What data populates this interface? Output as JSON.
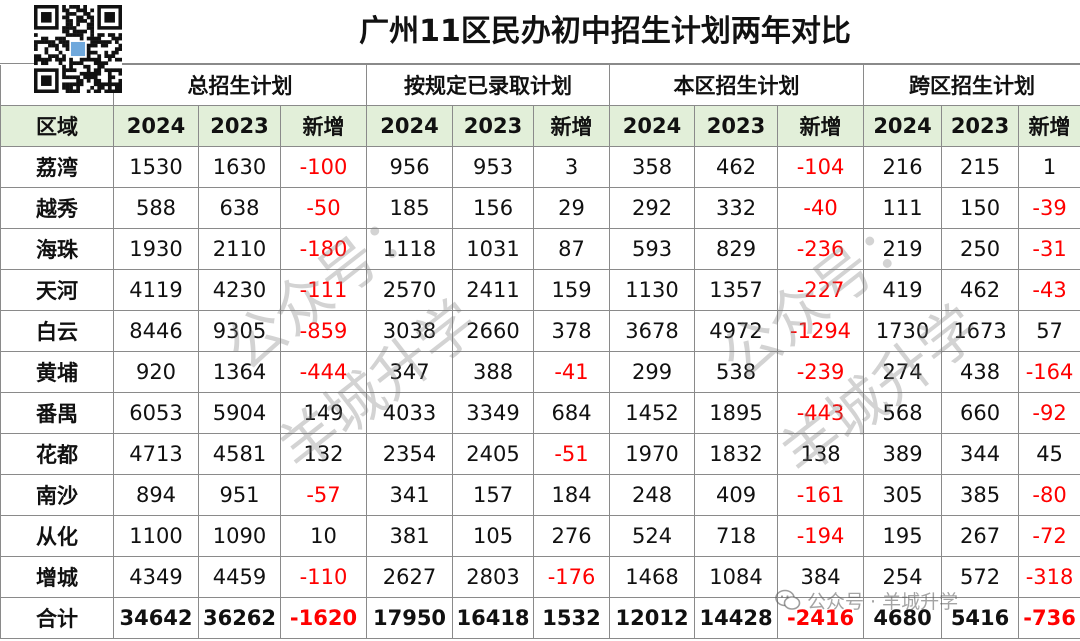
{
  "title": "广州11区民办初中招生计划两年对比",
  "groups": [
    "总招生计划",
    "按规定已录取计划",
    "本区招生计划",
    "跨区招生计划"
  ],
  "header": {
    "region": "区域",
    "cols": [
      "2024",
      "2023",
      "新增",
      "2024",
      "2023",
      "新增",
      "2024",
      "2023",
      "新增",
      "2024",
      "2023",
      "新增"
    ]
  },
  "rows": [
    {
      "region": "荔湾",
      "v": [
        "1530",
        "1630",
        "-100",
        "956",
        "953",
        "3",
        "358",
        "462",
        "-104",
        "216",
        "215",
        "1"
      ]
    },
    {
      "region": "越秀",
      "v": [
        "588",
        "638",
        "-50",
        "185",
        "156",
        "29",
        "292",
        "332",
        "-40",
        "111",
        "150",
        "-39"
      ]
    },
    {
      "region": "海珠",
      "v": [
        "1930",
        "2110",
        "-180",
        "1118",
        "1031",
        "87",
        "593",
        "829",
        "-236",
        "219",
        "250",
        "-31"
      ]
    },
    {
      "region": "天河",
      "v": [
        "4119",
        "4230",
        "-111",
        "2570",
        "2411",
        "159",
        "1130",
        "1357",
        "-227",
        "419",
        "462",
        "-43"
      ]
    },
    {
      "region": "白云",
      "v": [
        "8446",
        "9305",
        "-859",
        "3038",
        "2660",
        "378",
        "3678",
        "4972",
        "-1294",
        "1730",
        "1673",
        "57"
      ]
    },
    {
      "region": "黄埔",
      "v": [
        "920",
        "1364",
        "-444",
        "347",
        "388",
        "-41",
        "299",
        "538",
        "-239",
        "274",
        "438",
        "-164"
      ]
    },
    {
      "region": "番禺",
      "v": [
        "6053",
        "5904",
        "149",
        "4033",
        "3349",
        "684",
        "1452",
        "1895",
        "-443",
        "568",
        "660",
        "-92"
      ]
    },
    {
      "region": "花都",
      "v": [
        "4713",
        "4581",
        "132",
        "2354",
        "2405",
        "-51",
        "1970",
        "1832",
        "138",
        "389",
        "344",
        "45"
      ]
    },
    {
      "region": "南沙",
      "v": [
        "894",
        "951",
        "-57",
        "341",
        "157",
        "184",
        "248",
        "409",
        "-161",
        "305",
        "385",
        "-80"
      ]
    },
    {
      "region": "从化",
      "v": [
        "1100",
        "1090",
        "10",
        "381",
        "105",
        "276",
        "524",
        "718",
        "-194",
        "195",
        "267",
        "-72"
      ]
    },
    {
      "region": "增城",
      "v": [
        "4349",
        "4459",
        "-110",
        "2627",
        "2803",
        "-176",
        "1468",
        "1084",
        "384",
        "254",
        "572",
        "-318"
      ]
    }
  ],
  "total": {
    "region": "合计",
    "v": [
      "34642",
      "36262",
      "-1620",
      "17950",
      "16418",
      "1532",
      "12012",
      "14428",
      "-2416",
      "4680",
      "5416",
      "-736"
    ]
  },
  "watermarks": [
    "公众号：",
    "羊城升学"
  ],
  "footer_watermark": "公众号 · 羊城升学",
  "colors": {
    "header_bg": "#e2efd9",
    "negative": "#ff0000",
    "border": "#8a8a8a"
  },
  "icons": [
    "qr-code-icon",
    "wechat-icon"
  ]
}
